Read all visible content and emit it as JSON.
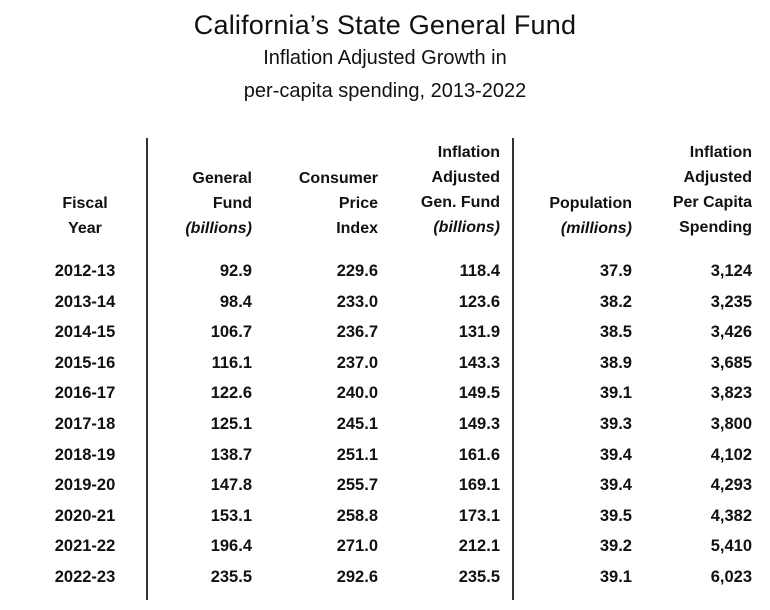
{
  "title": "California’s State General Fund",
  "subtitle_line1": "Inflation Adjusted Growth in",
  "subtitle_line2": "per-capita spending, 2013-2022",
  "columns": [
    {
      "lines": [
        "Fiscal",
        "Year"
      ],
      "italic": []
    },
    {
      "lines": [
        "General",
        "Fund"
      ],
      "italic": [
        "(billions)"
      ]
    },
    {
      "lines": [
        "Consumer",
        "Price",
        "Index"
      ],
      "italic": []
    },
    {
      "lines": [
        "Inflation",
        "Adjusted",
        "Gen. Fund"
      ],
      "italic": [
        "(billions)"
      ]
    },
    {
      "lines": [
        "Population"
      ],
      "italic": [
        "(millions)"
      ]
    },
    {
      "lines": [
        "Inflation",
        "Adjusted",
        "Per Capita",
        "Spending"
      ],
      "italic": []
    }
  ],
  "rows": [
    [
      "2012-13",
      "92.9",
      "229.6",
      "118.4",
      "37.9",
      "3,124"
    ],
    [
      "2013-14",
      "98.4",
      "233.0",
      "123.6",
      "38.2",
      "3,235"
    ],
    [
      "2014-15",
      "106.7",
      "236.7",
      "131.9",
      "38.5",
      "3,426"
    ],
    [
      "2015-16",
      "116.1",
      "237.0",
      "143.3",
      "38.9",
      "3,685"
    ],
    [
      "2016-17",
      "122.6",
      "240.0",
      "149.5",
      "39.1",
      "3,823"
    ],
    [
      "2017-18",
      "125.1",
      "245.1",
      "149.3",
      "39.3",
      "3,800"
    ],
    [
      "2018-19",
      "138.7",
      "251.1",
      "161.6",
      "39.4",
      "4,102"
    ],
    [
      "2019-20",
      "147.8",
      "255.7",
      "169.1",
      "39.4",
      "4,293"
    ],
    [
      "2020-21",
      "153.1",
      "258.8",
      "173.1",
      "39.5",
      "4,382"
    ],
    [
      "2021-22",
      "196.4",
      "271.0",
      "212.1",
      "39.2",
      "5,410"
    ],
    [
      "2022-23",
      "235.5",
      "292.6",
      "235.5",
      "39.1",
      "6,023"
    ]
  ]
}
